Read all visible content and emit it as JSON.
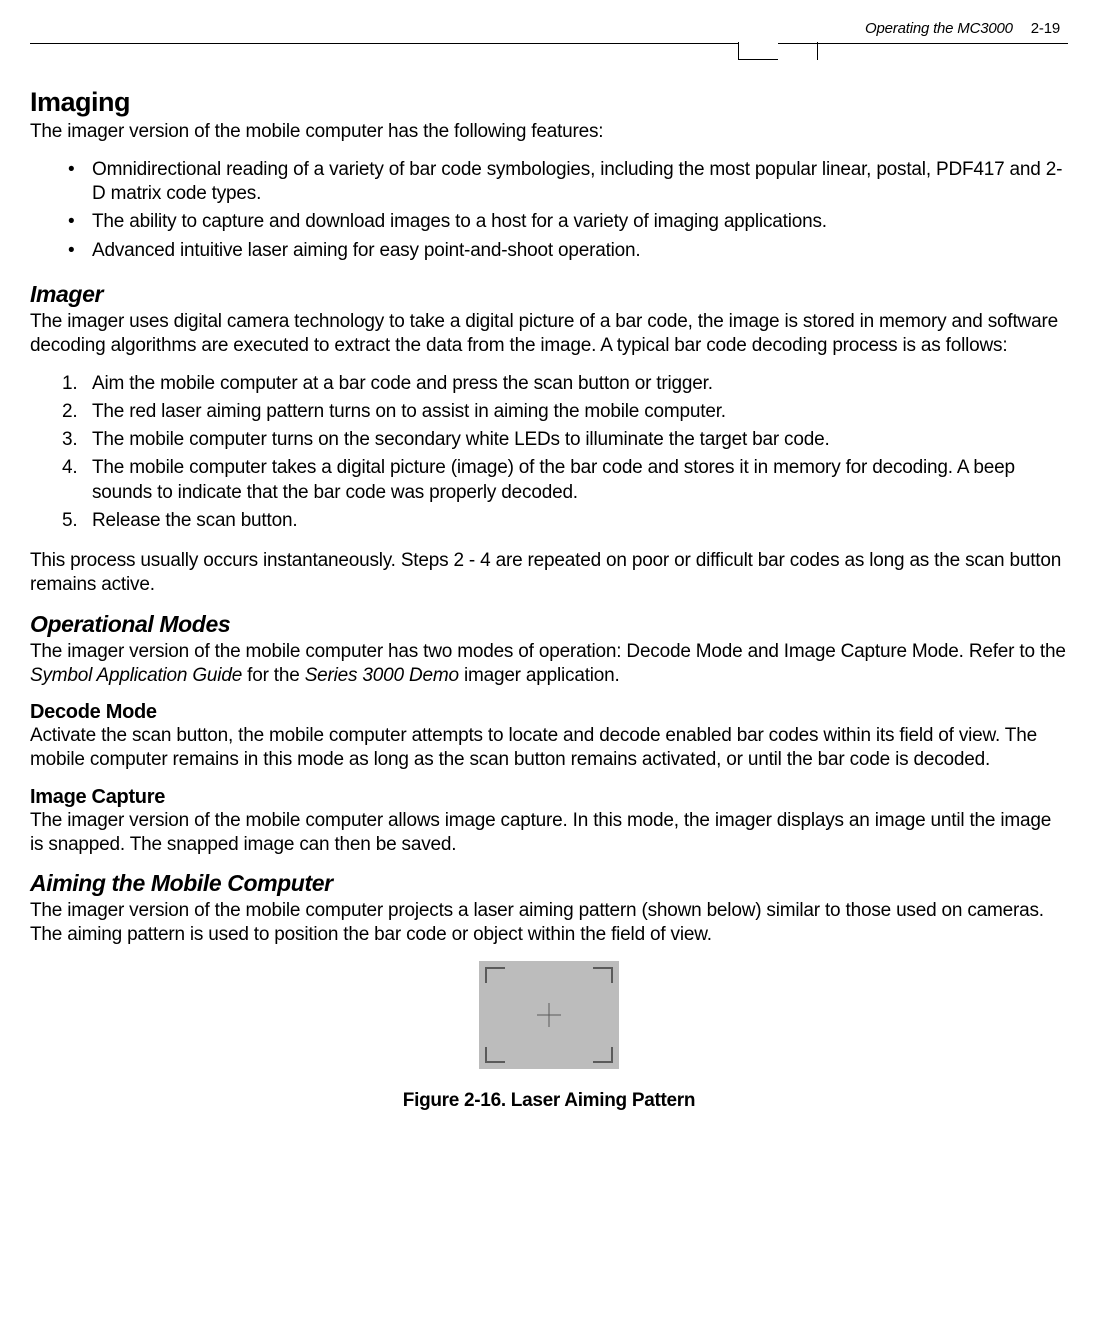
{
  "header": {
    "title": "Operating the MC3000",
    "page_number": "2-19"
  },
  "h1": "Imaging",
  "intro": "The imager version of the mobile computer has the following features:",
  "bullets": [
    "Omnidirectional reading of a variety of bar code symbologies, including the most popular linear, postal, PDF417 and 2-D matrix code types.",
    "The ability to capture and download images to a host for a variety of imaging applications.",
    "Advanced intuitive laser aiming for easy point-and-shoot operation."
  ],
  "imager": {
    "heading": "Imager",
    "body": "The imager uses digital camera technology to take a digital picture of a bar code, the image is stored in memory and software decoding algorithms are executed to extract the data from the image. A typical bar code decoding process is as follows:",
    "steps": [
      "Aim the mobile computer at a bar code and press the scan button or trigger.",
      "The red laser aiming pattern turns on to assist in aiming the mobile computer.",
      "The mobile computer turns on the secondary white LEDs to illuminate the target bar code.",
      "The mobile computer takes a digital picture (image) of the bar code and stores it in memory for decoding. A beep sounds to indicate that the bar code was properly decoded.",
      "Release the scan button."
    ],
    "after": "This process usually occurs instantaneously. Steps 2 - 4 are repeated on poor or difficult bar codes as long as the scan button remains active."
  },
  "op_modes": {
    "heading": "Operational Modes",
    "body_pre": "The imager version of the mobile computer has two modes of operation: Decode Mode and Image Capture Mode. Refer to the ",
    "body_i1": "Symbol Application Guide",
    "body_mid": " for the ",
    "body_i2": "Series 3000 Demo",
    "body_post": " imager application."
  },
  "decode": {
    "heading": "Decode Mode",
    "body": "Activate the scan button, the mobile computer attempts to locate and decode enabled bar codes within its field of view. The mobile computer remains in this mode as long as the scan button remains activated, or until the bar code is decoded."
  },
  "capture": {
    "heading": "Image Capture",
    "body": "The imager version of the mobile computer allows image capture. In this mode, the imager displays an image until the image is snapped. The snapped image can then be saved."
  },
  "aiming": {
    "heading": "Aiming the Mobile Computer",
    "body": "The imager version of the mobile computer projects a laser aiming pattern (shown below) similar to those used on cameras. The aiming pattern is used to position the bar code or object within the field of view."
  },
  "figure": {
    "caption": "Figure 2-16.  Laser Aiming Pattern",
    "bg_color": "#bcbcbc",
    "corner_color": "#5a5a5a"
  }
}
